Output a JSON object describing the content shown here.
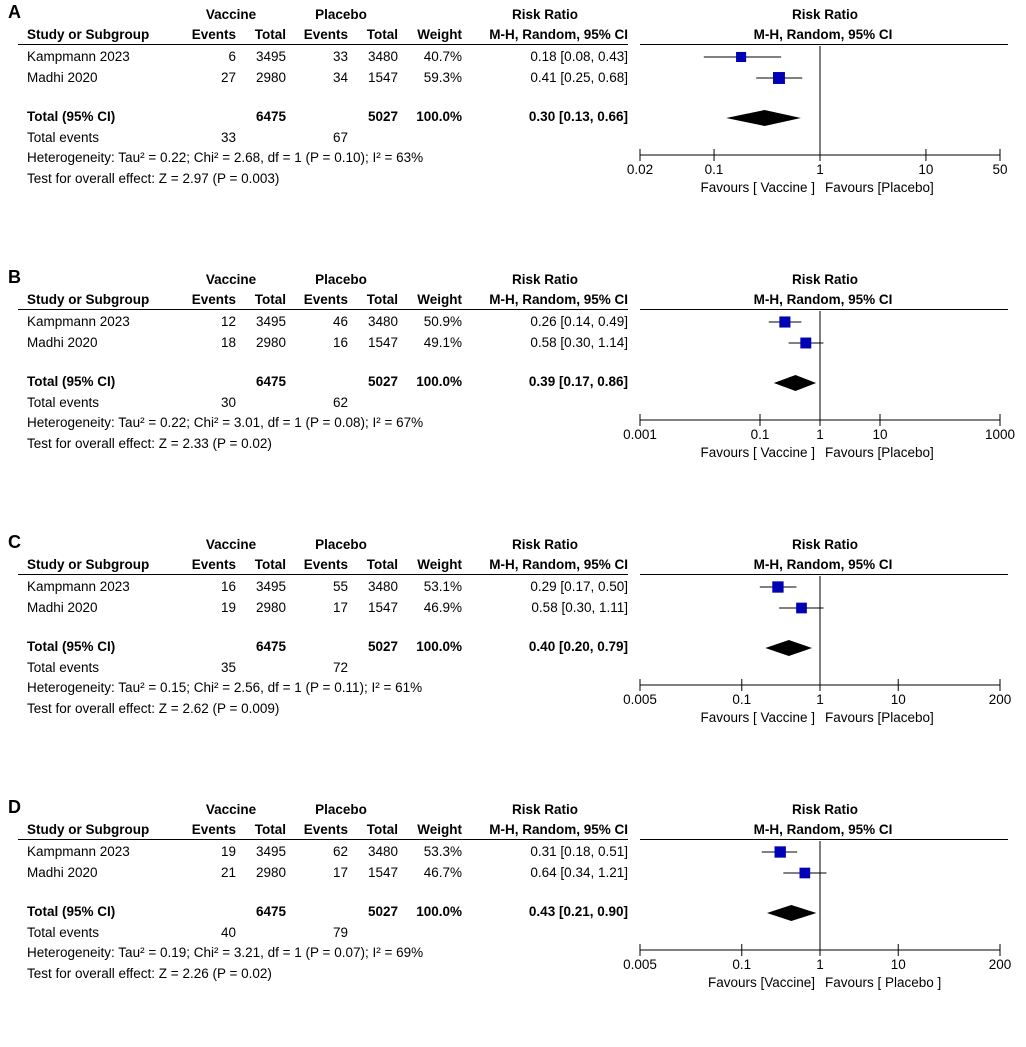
{
  "headers": {
    "study": "Study or Subgroup",
    "vaccine": "Vaccine",
    "placebo": "Placebo",
    "events": "Events",
    "total": "Total",
    "weight": "Weight",
    "rr": "Risk Ratio",
    "method": "M-H, Random, 95% CI"
  },
  "chart_data": [
    {
      "type": "forest",
      "panel_label": "A",
      "rows": [
        {
          "study": "Kampmann 2023",
          "ve": "6",
          "vt": "3495",
          "pe": "33",
          "pt": "3480",
          "weight": "40.7%",
          "ci": "0.18 [0.08, 0.43]",
          "rr": 0.18,
          "lo": 0.08,
          "hi": 0.43,
          "w": 40.7
        },
        {
          "study": "Madhi 2020",
          "ve": "27",
          "vt": "2980",
          "pe": "34",
          "pt": "1547",
          "weight": "59.3%",
          "ci": "0.41 [0.25, 0.68]",
          "rr": 0.41,
          "lo": 0.25,
          "hi": 0.68,
          "w": 59.3
        }
      ],
      "total": {
        "label": "Total (95% CI)",
        "vt": "6475",
        "pt": "5027",
        "weight": "100.0%",
        "ci": "0.30 [0.13, 0.66]",
        "rr": 0.3,
        "lo": 0.13,
        "hi": 0.66
      },
      "events": {
        "label": "Total events",
        "ve": "33",
        "pe": "67"
      },
      "heterogeneity": "Heterogeneity: Tau² = 0.22; Chi² = 2.68, df = 1 (P = 0.10); I² = 63%",
      "overall": "Test for overall effect: Z = 2.97 (P = 0.003)",
      "axis": {
        "min": 0.02,
        "max": 50,
        "ticks": [
          "0.02",
          "0.1",
          "1",
          "10",
          "50"
        ]
      },
      "favours_left": "Favours [ Vaccine ]",
      "favours_right": "Favours [Placebo]"
    },
    {
      "type": "forest",
      "panel_label": "B",
      "rows": [
        {
          "study": "Kampmann 2023",
          "ve": "12",
          "vt": "3495",
          "pe": "46",
          "pt": "3480",
          "weight": "50.9%",
          "ci": "0.26 [0.14, 0.49]",
          "rr": 0.26,
          "lo": 0.14,
          "hi": 0.49,
          "w": 50.9
        },
        {
          "study": "Madhi 2020",
          "ve": "18",
          "vt": "2980",
          "pe": "16",
          "pt": "1547",
          "weight": "49.1%",
          "ci": "0.58 [0.30, 1.14]",
          "rr": 0.58,
          "lo": 0.3,
          "hi": 1.14,
          "w": 49.1
        }
      ],
      "total": {
        "label": "Total (95% CI)",
        "vt": "6475",
        "pt": "5027",
        "weight": "100.0%",
        "ci": "0.39 [0.17, 0.86]",
        "rr": 0.39,
        "lo": 0.17,
        "hi": 0.86
      },
      "events": {
        "label": "Total events",
        "ve": "30",
        "pe": "62"
      },
      "heterogeneity": "Heterogeneity: Tau² = 0.22; Chi² = 3.01, df = 1 (P = 0.08); I² = 67%",
      "overall": "Test for overall effect: Z = 2.33 (P = 0.02)",
      "axis": {
        "min": 0.001,
        "max": 1000,
        "ticks": [
          "0.001",
          "0.1",
          "1",
          "10",
          "1000"
        ]
      },
      "favours_left": "Favours [ Vaccine ]",
      "favours_right": "Favours [Placebo]"
    },
    {
      "type": "forest",
      "panel_label": "C",
      "rows": [
        {
          "study": "Kampmann 2023",
          "ve": "16",
          "vt": "3495",
          "pe": "55",
          "pt": "3480",
          "weight": "53.1%",
          "ci": "0.29 [0.17, 0.50]",
          "rr": 0.29,
          "lo": 0.17,
          "hi": 0.5,
          "w": 53.1
        },
        {
          "study": "Madhi 2020",
          "ve": "19",
          "vt": "2980",
          "pe": "17",
          "pt": "1547",
          "weight": "46.9%",
          "ci": "0.58 [0.30, 1.11]",
          "rr": 0.58,
          "lo": 0.3,
          "hi": 1.11,
          "w": 46.9
        }
      ],
      "total": {
        "label": "Total (95% CI)",
        "vt": "6475",
        "pt": "5027",
        "weight": "100.0%",
        "ci": "0.40 [0.20, 0.79]",
        "rr": 0.4,
        "lo": 0.2,
        "hi": 0.79
      },
      "events": {
        "label": "Total events",
        "ve": "35",
        "pe": "72"
      },
      "heterogeneity": "Heterogeneity: Tau² = 0.15; Chi² = 2.56, df = 1 (P = 0.11); I² = 61%",
      "overall": "Test for overall effect: Z = 2.62 (P = 0.009)",
      "axis": {
        "min": 0.005,
        "max": 200,
        "ticks": [
          "0.005",
          "0.1",
          "1",
          "10",
          "200"
        ]
      },
      "favours_left": "Favours [ Vaccine ]",
      "favours_right": "Favours [Placebo]"
    },
    {
      "type": "forest",
      "panel_label": "D",
      "rows": [
        {
          "study": "Kampmann 2023",
          "ve": "19",
          "vt": "3495",
          "pe": "62",
          "pt": "3480",
          "weight": "53.3%",
          "ci": "0.31 [0.18, 0.51]",
          "rr": 0.31,
          "lo": 0.18,
          "hi": 0.51,
          "w": 53.3
        },
        {
          "study": "Madhi 2020",
          "ve": "21",
          "vt": "2980",
          "pe": "17",
          "pt": "1547",
          "weight": "46.7%",
          "ci": "0.64 [0.34, 1.21]",
          "rr": 0.64,
          "lo": 0.34,
          "hi": 1.21,
          "w": 46.7
        }
      ],
      "total": {
        "label": "Total (95% CI)",
        "vt": "6475",
        "pt": "5027",
        "weight": "100.0%",
        "ci": "0.43 [0.21, 0.90]",
        "rr": 0.43,
        "lo": 0.21,
        "hi": 0.9
      },
      "events": {
        "label": "Total events",
        "ve": "40",
        "pe": "79"
      },
      "heterogeneity": "Heterogeneity: Tau² = 0.19; Chi² = 3.21, df = 1 (P = 0.07); I² = 69%",
      "overall": "Test for overall effect: Z = 2.26 (P = 0.02)",
      "axis": {
        "min": 0.005,
        "max": 200,
        "ticks": [
          "0.005",
          "0.1",
          "1",
          "10",
          "200"
        ]
      },
      "favours_left": "Favours [Vaccine]",
      "favours_right": "Favours [ Placebo ]"
    }
  ]
}
